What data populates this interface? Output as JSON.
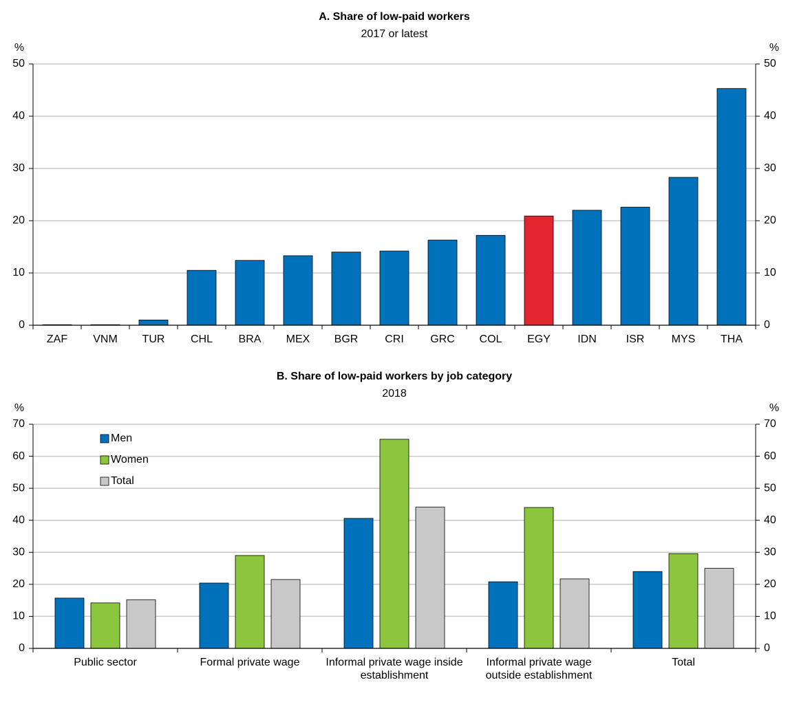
{
  "chart_data": [
    {
      "type": "bar",
      "title": "A. Share of low-paid workers",
      "subtitle": "2017 or latest",
      "y_label": "%",
      "categories": [
        "ZAF",
        "VNM",
        "TUR",
        "CHL",
        "BRA",
        "MEX",
        "BGR",
        "CRI",
        "GRC",
        "COL",
        "EGY",
        "IDN",
        "ISR",
        "MYS",
        "THA"
      ],
      "series": [
        {
          "values": [
            0.1,
            0.1,
            1.0,
            10.5,
            12.4,
            13.3,
            14.0,
            14.2,
            16.3,
            17.2,
            20.9,
            22.0,
            22.6,
            28.3,
            45.3
          ],
          "colors": [
            "#0072bc",
            "#0072bc",
            "#0072bc",
            "#0072bc",
            "#0072bc",
            "#0072bc",
            "#0072bc",
            "#0072bc",
            "#0072bc",
            "#0072bc",
            "#e1262d",
            "#0072bc",
            "#0072bc",
            "#0072bc",
            "#0072bc"
          ]
        }
      ],
      "ylim": [
        0,
        50
      ],
      "yticks": [
        0,
        10,
        20,
        30,
        40,
        50
      ],
      "grid": true
    },
    {
      "type": "bar",
      "title": "B. Share of low-paid workers by job category",
      "subtitle": "2018",
      "y_label": "%",
      "categories": [
        "Public sector",
        "Formal private wage",
        "Informal private wage inside establishment",
        "Informal private wage outside establishment",
        "Total"
      ],
      "series": [
        {
          "name": "Men",
          "color": "#0072bc",
          "values": [
            15.7,
            20.4,
            40.6,
            20.8,
            24.0
          ]
        },
        {
          "name": "Women",
          "color": "#8cc63f",
          "values": [
            14.2,
            29.0,
            65.3,
            44.0,
            29.6
          ]
        },
        {
          "name": "Total",
          "color": "#c8c8c8",
          "values": [
            15.2,
            21.5,
            44.1,
            21.7,
            25.0
          ]
        }
      ],
      "ylim": [
        0,
        70
      ],
      "yticks": [
        0,
        10,
        20,
        30,
        40,
        50,
        60,
        70
      ],
      "grid": true,
      "legend": "upper left"
    }
  ]
}
